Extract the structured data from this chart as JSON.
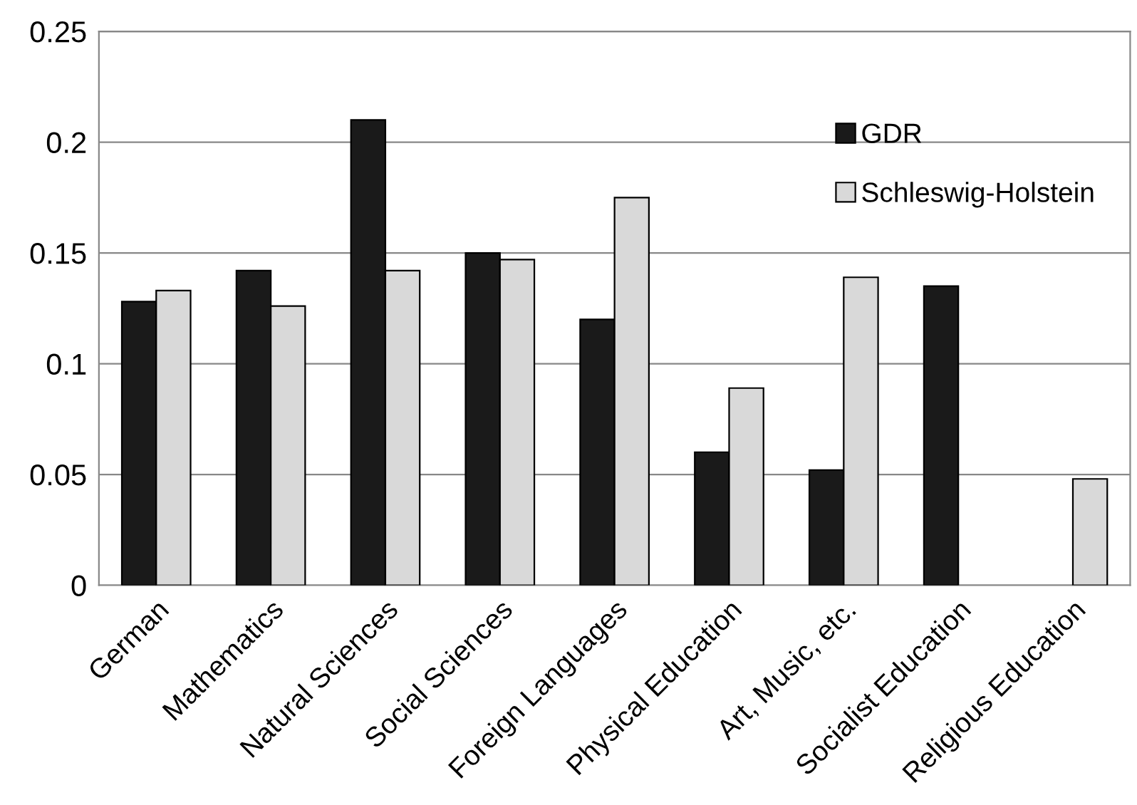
{
  "chart_data": {
    "type": "bar",
    "categories": [
      "German",
      "Mathematics",
      "Natural Sciences",
      "Social Sciences",
      "Foreign Languages",
      "Physical Education",
      "Art, Music, etc.",
      "Socialist Education",
      "Religious Education"
    ],
    "series": [
      {
        "name": "GDR",
        "color": "#1a1a1a",
        "values": [
          0.128,
          0.142,
          0.21,
          0.15,
          0.12,
          0.06,
          0.052,
          0.135,
          null
        ]
      },
      {
        "name": "Schleswig-Holstein",
        "color": "#d9d9d9",
        "values": [
          0.133,
          0.126,
          0.142,
          0.147,
          0.175,
          0.089,
          0.139,
          null,
          0.048
        ]
      }
    ],
    "ylim": [
      0,
      0.25
    ],
    "yticks": [
      0,
      0.05,
      0.1,
      0.15,
      0.2,
      0.25
    ],
    "grid": "y",
    "legend": "top right"
  }
}
